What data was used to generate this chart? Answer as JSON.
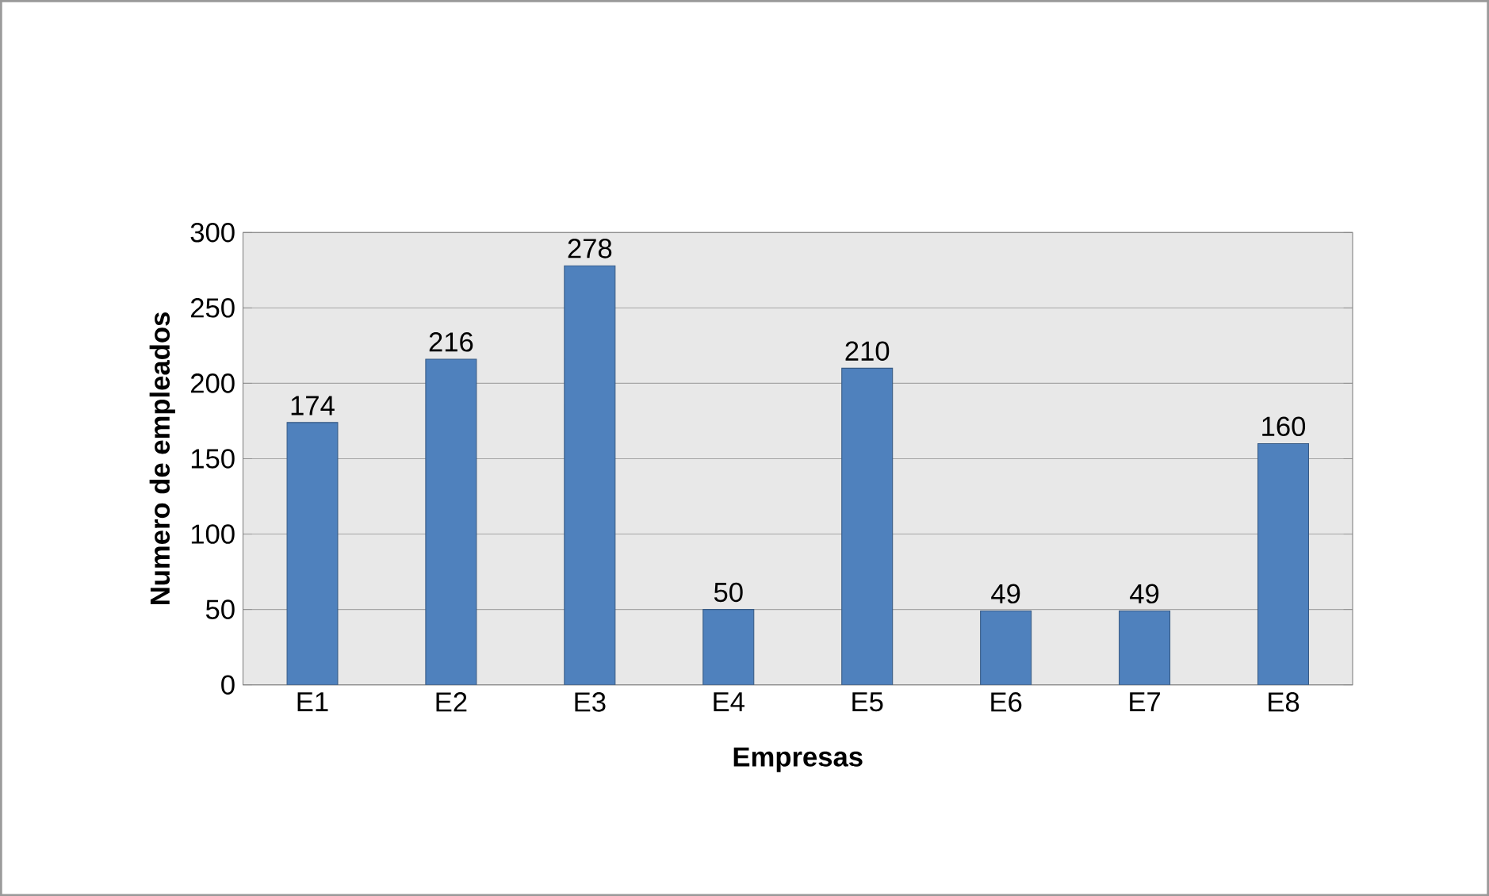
{
  "chart_data": {
    "type": "bar",
    "xlabel": "Empresas",
    "ylabel": "Numero de empleados",
    "categories": [
      "E1",
      "E2",
      "E3",
      "E4",
      "E5",
      "E6",
      "E7",
      "E8"
    ],
    "values": [
      174,
      216,
      278,
      50,
      210,
      49,
      49,
      160
    ],
    "color": "#4f81bd",
    "ylim": [
      0,
      300
    ],
    "yticks": [
      0,
      50,
      100,
      150,
      200,
      250,
      300
    ],
    "grid": "y",
    "data_labels": true
  }
}
